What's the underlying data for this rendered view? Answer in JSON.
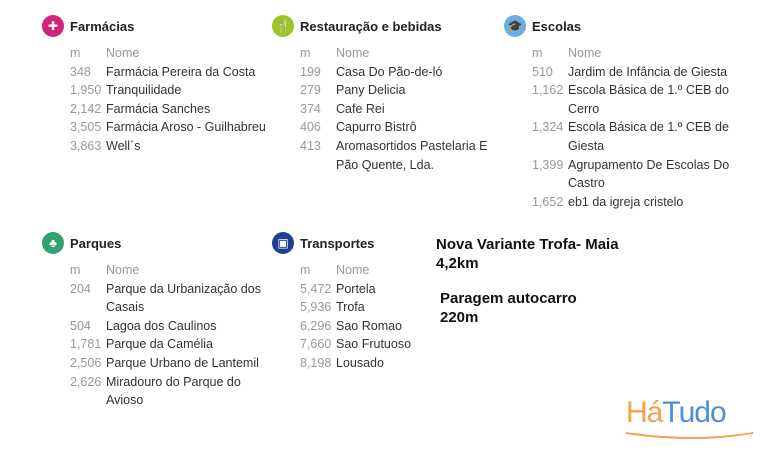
{
  "sections": [
    {
      "title": "Farmácias",
      "icon": "pharmacy-icon",
      "color": "#d0237a",
      "col_m": "m",
      "col_name": "Nome",
      "rows": [
        [
          "348",
          "Farmácia Pereira da Costa"
        ],
        [
          "1,950",
          "Tranquilidade"
        ],
        [
          "2,142",
          "Farmácia Sanches"
        ],
        [
          "3,505",
          "Farmácia Aroso - Guilhabreu"
        ],
        [
          "3,863",
          "Well´s"
        ]
      ]
    },
    {
      "title": "Restauração e bebidas",
      "icon": "cutlery-icon",
      "color": "#9cc621",
      "col_m": "m",
      "col_name": "Nome",
      "rows": [
        [
          "199",
          "Casa Do Pão-de-ló"
        ],
        [
          "279",
          "Pany Delicia"
        ],
        [
          "374",
          "Cafe Rei"
        ],
        [
          "406",
          "Capurro Bistrô"
        ],
        [
          "413",
          "Aromasortidos Pastelaria E Pão Quente, Lda."
        ]
      ]
    },
    {
      "title": "Escolas",
      "icon": "graduation-cap-icon",
      "color": "#6aaee0",
      "col_m": "m",
      "col_name": "Nome",
      "rows": [
        [
          "510",
          "Jardim de Infância de Giesta"
        ],
        [
          "1,162",
          "Escola Básica de 1.º CEB do Cerro"
        ],
        [
          "1,324",
          "Escola Básica de 1.º CEB de Giesta"
        ],
        [
          "1,399",
          "Agrupamento De Escolas Do Castro"
        ],
        [
          "1,652",
          "eb1 da igreja cristelo"
        ]
      ]
    },
    {
      "title": "Parques",
      "icon": "tree-icon",
      "color": "#2ea36b",
      "col_m": "m",
      "col_name": "Nome",
      "rows": [
        [
          "204",
          "Parque da Urbanização dos Casais"
        ],
        [
          "504",
          "Lagoa dos Caulinos"
        ],
        [
          "1,781",
          "Parque da Camélia"
        ],
        [
          "2,506",
          "Parque Urbano de Lantemil"
        ],
        [
          "2,626",
          "Miradouro do Parque do Avioso"
        ]
      ]
    },
    {
      "title": "Transportes",
      "icon": "bus-icon",
      "color": "#1f3f8f",
      "col_m": "m",
      "col_name": "Nome",
      "rows": [
        [
          "5,472",
          "Portela"
        ],
        [
          "5,936",
          "Trofa"
        ],
        [
          "6,296",
          "Sao Romao"
        ],
        [
          "7,660",
          "Sao Frutuoso"
        ],
        [
          "8,198",
          "Lousado"
        ]
      ]
    }
  ],
  "notes": {
    "line1": "Nova Variante Trofa- Maia",
    "line2": "4,2km",
    "line3": "Paragem autocarro",
    "line4": "220m"
  },
  "logo": {
    "text1": "Há",
    "text2": "Tudo",
    "color1": "#f5a04a",
    "color2": "#4a90d9"
  }
}
